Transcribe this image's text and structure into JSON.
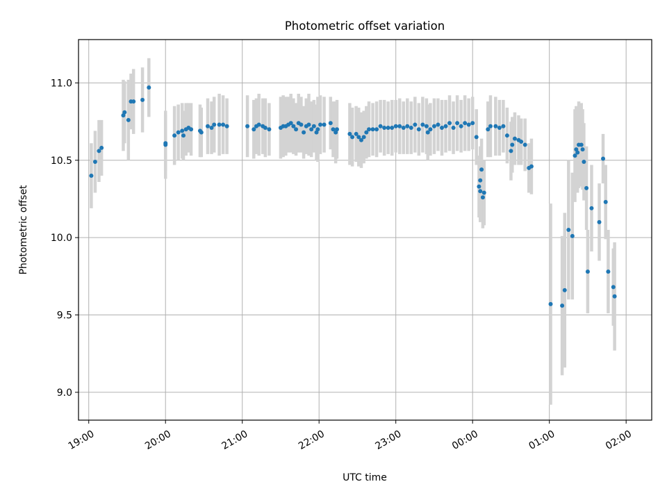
{
  "chart_data": {
    "type": "scatter",
    "title": "Photometric offset variation",
    "xlabel": "UTC time",
    "ylabel": "Photometric offset",
    "x_ticks": [
      "19:00",
      "20:00",
      "21:00",
      "22:00",
      "23:00",
      "00:00",
      "01:00",
      "02:00"
    ],
    "y_ticks": [
      "9.0",
      "9.5",
      "10.0",
      "10.5",
      "11.0"
    ],
    "xlim": [
      "18:52",
      "02:20"
    ],
    "ylim": [
      8.82,
      11.28
    ],
    "grid": true,
    "legend": "none",
    "colors": {
      "points": "#1f77b4",
      "errorbars": "#d3d3d3",
      "grid": "#b0b0b0"
    },
    "series": [
      {
        "points": [
          {
            "t": "19:02",
            "y": 10.4,
            "err": 0.21
          },
          {
            "t": "19:05",
            "y": 10.49,
            "err": 0.2
          },
          {
            "t": "19:08",
            "y": 10.56,
            "err": 0.2
          },
          {
            "t": "19:10",
            "y": 10.58,
            "err": 0.18
          },
          {
            "t": "19:27",
            "y": 10.79,
            "err": 0.23
          },
          {
            "t": "19:28",
            "y": 10.81,
            "err": 0.2
          },
          {
            "t": "19:31",
            "y": 10.76,
            "err": 0.26
          },
          {
            "t": "19:33",
            "y": 10.88,
            "err": 0.18
          },
          {
            "t": "19:35",
            "y": 10.88,
            "err": 0.21
          },
          {
            "t": "19:42",
            "y": 10.89,
            "err": 0.21
          },
          {
            "t": "19:47",
            "y": 10.97,
            "err": 0.19
          },
          {
            "t": "20:00",
            "y": 10.6,
            "err": 0.22
          },
          {
            "t": "20:00",
            "y": 10.61,
            "err": 0.18
          },
          {
            "t": "20:07",
            "y": 10.66,
            "err": 0.19
          },
          {
            "t": "20:10",
            "y": 10.68,
            "err": 0.18
          },
          {
            "t": "20:13",
            "y": 10.69,
            "err": 0.18
          },
          {
            "t": "20:14",
            "y": 10.66,
            "err": 0.16
          },
          {
            "t": "20:16",
            "y": 10.7,
            "err": 0.17
          },
          {
            "t": "20:18",
            "y": 10.71,
            "err": 0.16
          },
          {
            "t": "20:20",
            "y": 10.7,
            "err": 0.17
          },
          {
            "t": "20:27",
            "y": 10.69,
            "err": 0.17
          },
          {
            "t": "20:28",
            "y": 10.68,
            "err": 0.16
          },
          {
            "t": "20:33",
            "y": 10.72,
            "err": 0.18
          },
          {
            "t": "20:36",
            "y": 10.71,
            "err": 0.17
          },
          {
            "t": "20:38",
            "y": 10.73,
            "err": 0.18
          },
          {
            "t": "20:42",
            "y": 10.73,
            "err": 0.2
          },
          {
            "t": "20:45",
            "y": 10.73,
            "err": 0.19
          },
          {
            "t": "20:48",
            "y": 10.72,
            "err": 0.18
          },
          {
            "t": "21:04",
            "y": 10.72,
            "err": 0.2
          },
          {
            "t": "21:09",
            "y": 10.7,
            "err": 0.19
          },
          {
            "t": "21:11",
            "y": 10.72,
            "err": 0.18
          },
          {
            "t": "21:13",
            "y": 10.73,
            "err": 0.2
          },
          {
            "t": "21:16",
            "y": 10.72,
            "err": 0.18
          },
          {
            "t": "21:18",
            "y": 10.71,
            "err": 0.19
          },
          {
            "t": "21:21",
            "y": 10.7,
            "err": 0.17
          },
          {
            "t": "21:30",
            "y": 10.71,
            "err": 0.2
          },
          {
            "t": "21:32",
            "y": 10.72,
            "err": 0.2
          },
          {
            "t": "21:34",
            "y": 10.72,
            "err": 0.19
          },
          {
            "t": "21:36",
            "y": 10.73,
            "err": 0.18
          },
          {
            "t": "21:38",
            "y": 10.74,
            "err": 0.19
          },
          {
            "t": "21:40",
            "y": 10.72,
            "err": 0.18
          },
          {
            "t": "21:42",
            "y": 10.7,
            "err": 0.17
          },
          {
            "t": "21:44",
            "y": 10.74,
            "err": 0.19
          },
          {
            "t": "21:46",
            "y": 10.73,
            "err": 0.18
          },
          {
            "t": "21:48",
            "y": 10.68,
            "err": 0.17
          },
          {
            "t": "21:50",
            "y": 10.72,
            "err": 0.18
          },
          {
            "t": "21:52",
            "y": 10.73,
            "err": 0.2
          },
          {
            "t": "21:54",
            "y": 10.7,
            "err": 0.18
          },
          {
            "t": "21:56",
            "y": 10.72,
            "err": 0.17
          },
          {
            "t": "21:58",
            "y": 10.68,
            "err": 0.18
          },
          {
            "t": "21:59",
            "y": 10.7,
            "err": 0.21
          },
          {
            "t": "22:01",
            "y": 10.73,
            "err": 0.19
          },
          {
            "t": "22:04",
            "y": 10.73,
            "err": 0.18
          },
          {
            "t": "22:09",
            "y": 10.74,
            "err": 0.17
          },
          {
            "t": "22:11",
            "y": 10.7,
            "err": 0.18
          },
          {
            "t": "22:13",
            "y": 10.68,
            "err": 0.2
          },
          {
            "t": "22:14",
            "y": 10.7,
            "err": 0.19
          },
          {
            "t": "22:24",
            "y": 10.67,
            "err": 0.2
          },
          {
            "t": "22:26",
            "y": 10.65,
            "err": 0.19
          },
          {
            "t": "22:29",
            "y": 10.67,
            "err": 0.18
          },
          {
            "t": "22:31",
            "y": 10.65,
            "err": 0.19
          },
          {
            "t": "22:33",
            "y": 10.63,
            "err": 0.18
          },
          {
            "t": "22:35",
            "y": 10.65,
            "err": 0.17
          },
          {
            "t": "22:37",
            "y": 10.68,
            "err": 0.17
          },
          {
            "t": "22:39",
            "y": 10.7,
            "err": 0.18
          },
          {
            "t": "22:42",
            "y": 10.7,
            "err": 0.17
          },
          {
            "t": "22:45",
            "y": 10.7,
            "err": 0.18
          },
          {
            "t": "22:48",
            "y": 10.72,
            "err": 0.17
          },
          {
            "t": "22:51",
            "y": 10.71,
            "err": 0.18
          },
          {
            "t": "22:54",
            "y": 10.71,
            "err": 0.17
          },
          {
            "t": "22:57",
            "y": 10.71,
            "err": 0.18
          },
          {
            "t": "23:00",
            "y": 10.72,
            "err": 0.17
          },
          {
            "t": "23:03",
            "y": 10.72,
            "err": 0.18
          },
          {
            "t": "23:06",
            "y": 10.71,
            "err": 0.17
          },
          {
            "t": "23:09",
            "y": 10.72,
            "err": 0.18
          },
          {
            "t": "23:12",
            "y": 10.71,
            "err": 0.17
          },
          {
            "t": "23:15",
            "y": 10.73,
            "err": 0.18
          },
          {
            "t": "23:18",
            "y": 10.7,
            "err": 0.17
          },
          {
            "t": "23:21",
            "y": 10.73,
            "err": 0.18
          },
          {
            "t": "23:24",
            "y": 10.72,
            "err": 0.18
          },
          {
            "t": "23:25",
            "y": 10.68,
            "err": 0.18
          },
          {
            "t": "23:27",
            "y": 10.7,
            "err": 0.17
          },
          {
            "t": "23:30",
            "y": 10.72,
            "err": 0.18
          },
          {
            "t": "23:33",
            "y": 10.73,
            "err": 0.17
          },
          {
            "t": "23:36",
            "y": 10.71,
            "err": 0.18
          },
          {
            "t": "23:39",
            "y": 10.72,
            "err": 0.17
          },
          {
            "t": "23:42",
            "y": 10.74,
            "err": 0.18
          },
          {
            "t": "23:45",
            "y": 10.71,
            "err": 0.17
          },
          {
            "t": "23:48",
            "y": 10.74,
            "err": 0.18
          },
          {
            "t": "23:51",
            "y": 10.72,
            "err": 0.17
          },
          {
            "t": "23:54",
            "y": 10.74,
            "err": 0.18
          },
          {
            "t": "23:57",
            "y": 10.73,
            "err": 0.17
          },
          {
            "t": "00:00",
            "y": 10.74,
            "err": 0.17
          },
          {
            "t": "00:03",
            "y": 10.65,
            "err": 0.18
          },
          {
            "t": "00:05",
            "y": 10.33,
            "err": 0.2
          },
          {
            "t": "00:06",
            "y": 10.37,
            "err": 0.22
          },
          {
            "t": "00:06",
            "y": 10.3,
            "err": 0.2
          },
          {
            "t": "00:07",
            "y": 10.44,
            "err": 0.2
          },
          {
            "t": "00:08",
            "y": 10.26,
            "err": 0.2
          },
          {
            "t": "00:09",
            "y": 10.29,
            "err": 0.21
          },
          {
            "t": "00:12",
            "y": 10.7,
            "err": 0.18
          },
          {
            "t": "00:14",
            "y": 10.72,
            "err": 0.2
          },
          {
            "t": "00:18",
            "y": 10.72,
            "err": 0.19
          },
          {
            "t": "00:21",
            "y": 10.71,
            "err": 0.18
          },
          {
            "t": "00:24",
            "y": 10.72,
            "err": 0.17
          },
          {
            "t": "00:27",
            "y": 10.66,
            "err": 0.18
          },
          {
            "t": "00:30",
            "y": 10.56,
            "err": 0.19
          },
          {
            "t": "00:31",
            "y": 10.6,
            "err": 0.18
          },
          {
            "t": "00:33",
            "y": 10.64,
            "err": 0.17
          },
          {
            "t": "00:36",
            "y": 10.63,
            "err": 0.16
          },
          {
            "t": "00:38",
            "y": 10.62,
            "err": 0.15
          },
          {
            "t": "00:41",
            "y": 10.6,
            "err": 0.17
          },
          {
            "t": "00:44",
            "y": 10.45,
            "err": 0.16
          },
          {
            "t": "00:46",
            "y": 10.46,
            "err": 0.18
          },
          {
            "t": "01:01",
            "y": 9.57,
            "err": 0.65
          },
          {
            "t": "01:10",
            "y": 9.56,
            "err": 0.45
          },
          {
            "t": "01:12",
            "y": 9.66,
            "err": 0.5
          },
          {
            "t": "01:15",
            "y": 10.05,
            "err": 0.45
          },
          {
            "t": "01:18",
            "y": 10.01,
            "err": 0.41
          },
          {
            "t": "01:20",
            "y": 10.53,
            "err": 0.3
          },
          {
            "t": "01:21",
            "y": 10.57,
            "err": 0.28
          },
          {
            "t": "01:22",
            "y": 10.55,
            "err": 0.26
          },
          {
            "t": "01:23",
            "y": 10.6,
            "err": 0.28
          },
          {
            "t": "01:25",
            "y": 10.6,
            "err": 0.27
          },
          {
            "t": "01:26",
            "y": 10.57,
            "err": 0.26
          },
          {
            "t": "01:27",
            "y": 10.49,
            "err": 0.25
          },
          {
            "t": "01:29",
            "y": 10.32,
            "err": 0.27
          },
          {
            "t": "01:30",
            "y": 9.78,
            "err": 0.27
          },
          {
            "t": "01:33",
            "y": 10.19,
            "err": 0.28
          },
          {
            "t": "01:39",
            "y": 10.1,
            "err": 0.25
          },
          {
            "t": "01:42",
            "y": 10.51,
            "err": 0.16
          },
          {
            "t": "01:44",
            "y": 10.23,
            "err": 0.24
          },
          {
            "t": "01:46",
            "y": 9.78,
            "err": 0.27
          },
          {
            "t": "01:50",
            "y": 9.68,
            "err": 0.25
          },
          {
            "t": "01:51",
            "y": 9.62,
            "err": 0.35
          }
        ]
      }
    ]
  }
}
